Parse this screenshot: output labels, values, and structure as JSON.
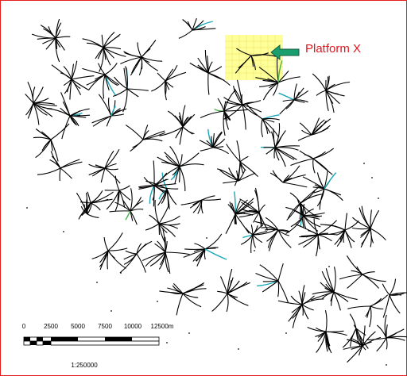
{
  "map": {
    "title": "",
    "annotation": {
      "label": "Platform X",
      "arrow_color": "#1a9e6e",
      "label_color": "#e0161e",
      "highlight_color": "#ffff88"
    },
    "frame_color": "#e41e1e",
    "well_colors": {
      "default": "#000000",
      "teal": "#1aa8b8",
      "green": "#4caf50"
    },
    "scale_bar": {
      "tick_labels": [
        "0",
        "2500",
        "5000",
        "7500",
        "10000",
        "12500m"
      ],
      "ratio": "1:250000"
    }
  }
}
